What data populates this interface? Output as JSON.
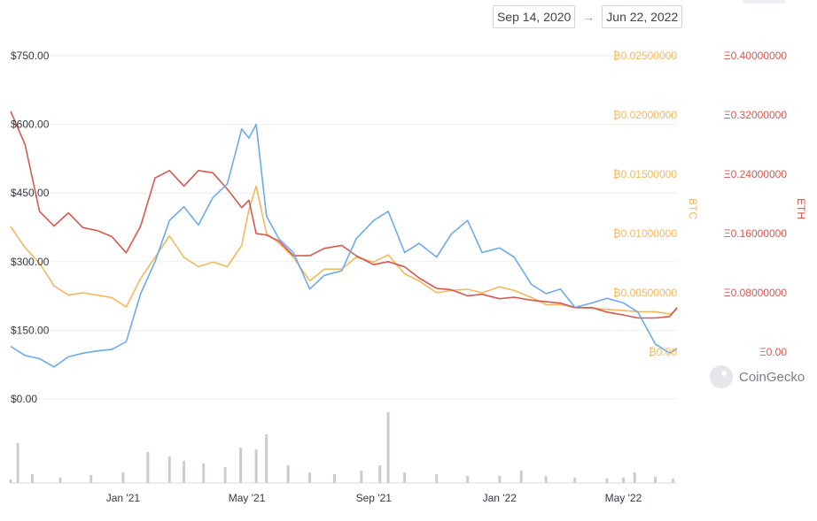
{
  "date_range": {
    "start": "Sep 14, 2020",
    "arrow": "→",
    "end": "Jun 22, 2022"
  },
  "branding": {
    "logo_text": "CoinGecko"
  },
  "colors": {
    "usd": "#6aabed",
    "btc": "#f5b75b",
    "eth": "#d6584f",
    "volume": "#c9ccd1",
    "grid": "#eeeeee"
  },
  "chart_data": {
    "type": "line",
    "x_range": [
      "2020-09-14",
      "2022-06-22"
    ],
    "x_tick_labels": [
      "Jan '21",
      "May '21",
      "Sep '21",
      "Jan '22",
      "May '22"
    ],
    "x_tick_dates": [
      "2021-01-01",
      "2021-05-01",
      "2021-09-01",
      "2022-01-01",
      "2022-05-01"
    ],
    "axes": {
      "usd": {
        "label": "",
        "range": [
          0,
          750
        ],
        "ticks": [
          "$750.00",
          "$600.00",
          "$450.00",
          "$300.00",
          "$150.00",
          "$0.00"
        ]
      },
      "btc": {
        "label": "BTC",
        "range": [
          0,
          0.025
        ],
        "ticks": [
          "₿0.02500000",
          "₿0.02000000",
          "₿0.01500000",
          "₿0.01000000",
          "₿0.00500000",
          "₿0.00"
        ]
      },
      "eth": {
        "label": "ETH",
        "range": [
          0,
          0.4
        ],
        "ticks": [
          "Ξ0.40000000",
          "Ξ0.32000000",
          "Ξ0.24000000",
          "Ξ0.16000000",
          "Ξ0.08000000",
          "Ξ0.00"
        ]
      }
    },
    "grid": true,
    "legend": "none",
    "series": [
      {
        "key": "usd",
        "x": [
          "2020-09-14",
          "2020-09-28",
          "2020-10-12",
          "2020-10-26",
          "2020-11-09",
          "2020-11-23",
          "2020-12-07",
          "2020-12-21",
          "2021-01-04",
          "2021-01-18",
          "2021-02-01",
          "2021-02-15",
          "2021-03-01",
          "2021-03-15",
          "2021-03-29",
          "2021-04-12",
          "2021-04-26",
          "2021-05-03",
          "2021-05-10",
          "2021-05-20",
          "2021-06-01",
          "2021-06-15",
          "2021-07-01",
          "2021-07-15",
          "2021-08-01",
          "2021-08-15",
          "2021-09-01",
          "2021-09-15",
          "2021-10-01",
          "2021-10-15",
          "2021-11-01",
          "2021-11-15",
          "2021-12-01",
          "2021-12-15",
          "2022-01-01",
          "2022-01-15",
          "2022-02-01",
          "2022-02-15",
          "2022-03-01",
          "2022-03-15",
          "2022-04-01",
          "2022-04-15",
          "2022-05-01",
          "2022-05-15",
          "2022-06-01",
          "2022-06-15",
          "2022-06-22"
        ],
        "values": [
          115,
          95,
          88,
          70,
          92,
          100,
          105,
          108,
          125,
          230,
          300,
          390,
          420,
          380,
          440,
          470,
          590,
          570,
          600,
          400,
          350,
          320,
          240,
          270,
          280,
          350,
          390,
          410,
          320,
          340,
          310,
          360,
          390,
          320,
          330,
          310,
          250,
          230,
          240,
          200,
          210,
          220,
          210,
          190,
          120,
          100,
          110
        ]
      },
      {
        "key": "btc",
        "x": [
          "2020-09-14",
          "2020-09-28",
          "2020-10-12",
          "2020-10-26",
          "2020-11-09",
          "2020-11-23",
          "2020-12-07",
          "2020-12-21",
          "2021-01-04",
          "2021-01-18",
          "2021-02-01",
          "2021-02-15",
          "2021-03-01",
          "2021-03-15",
          "2021-03-29",
          "2021-04-12",
          "2021-04-26",
          "2021-05-03",
          "2021-05-10",
          "2021-05-20",
          "2021-06-01",
          "2021-06-15",
          "2021-07-01",
          "2021-07-15",
          "2021-08-01",
          "2021-08-15",
          "2021-09-01",
          "2021-09-15",
          "2021-10-01",
          "2021-10-15",
          "2021-11-01",
          "2021-11-15",
          "2021-12-01",
          "2021-12-15",
          "2022-01-01",
          "2022-01-15",
          "2022-02-01",
          "2022-02-15",
          "2022-03-01",
          "2022-03-15",
          "2022-04-01",
          "2022-04-15",
          "2022-05-01",
          "2022-05-15",
          "2022-06-01",
          "2022-06-15",
          "2022-06-22"
        ],
        "values": [
          0.0106,
          0.0088,
          0.0075,
          0.0056,
          0.0048,
          0.005,
          0.0048,
          0.0046,
          0.0038,
          0.0062,
          0.008,
          0.0098,
          0.008,
          0.0072,
          0.0076,
          0.0072,
          0.009,
          0.012,
          0.014,
          0.01,
          0.0092,
          0.008,
          0.006,
          0.007,
          0.007,
          0.008,
          0.0076,
          0.0082,
          0.0066,
          0.006,
          0.005,
          0.0052,
          0.0053,
          0.005,
          0.0055,
          0.0052,
          0.0046,
          0.004,
          0.004,
          0.0038,
          0.0037,
          0.0036,
          0.0035,
          0.0034,
          0.0034,
          0.0032,
          0.0036
        ]
      },
      {
        "key": "eth",
        "x": [
          "2020-09-14",
          "2020-09-28",
          "2020-10-12",
          "2020-10-26",
          "2020-11-09",
          "2020-11-23",
          "2020-12-07",
          "2020-12-21",
          "2021-01-04",
          "2021-01-18",
          "2021-02-01",
          "2021-02-15",
          "2021-03-01",
          "2021-03-15",
          "2021-03-29",
          "2021-04-12",
          "2021-04-26",
          "2021-05-03",
          "2021-05-10",
          "2021-05-20",
          "2021-06-01",
          "2021-06-15",
          "2021-07-01",
          "2021-07-15",
          "2021-08-01",
          "2021-08-15",
          "2021-09-01",
          "2021-09-15",
          "2021-10-01",
          "2021-10-15",
          "2021-11-01",
          "2021-11-15",
          "2021-12-01",
          "2021-12-15",
          "2022-01-01",
          "2022-01-15",
          "2022-02-01",
          "2022-02-15",
          "2022-03-01",
          "2022-03-15",
          "2022-04-01",
          "2022-04-15",
          "2022-05-01",
          "2022-05-15",
          "2022-06-01",
          "2022-06-15",
          "2022-06-22"
        ],
        "values": [
          0.325,
          0.28,
          0.19,
          0.17,
          0.188,
          0.168,
          0.164,
          0.156,
          0.134,
          0.17,
          0.235,
          0.245,
          0.224,
          0.245,
          0.242,
          0.22,
          0.195,
          0.205,
          0.16,
          0.158,
          0.15,
          0.13,
          0.13,
          0.14,
          0.144,
          0.13,
          0.118,
          0.122,
          0.115,
          0.1,
          0.086,
          0.084,
          0.076,
          0.078,
          0.072,
          0.074,
          0.07,
          0.068,
          0.066,
          0.06,
          0.06,
          0.054,
          0.05,
          0.046,
          0.046,
          0.048,
          0.06
        ]
      },
      {
        "key": "volume",
        "type": "bar",
        "x": [
          "2020-09-14",
          "2020-09-21",
          "2020-10-05",
          "2020-11-01",
          "2020-12-01",
          "2021-01-01",
          "2021-01-25",
          "2021-02-15",
          "2021-03-01",
          "2021-03-20",
          "2021-04-10",
          "2021-04-25",
          "2021-05-10",
          "2021-05-20",
          "2021-06-10",
          "2021-07-01",
          "2021-07-25",
          "2021-08-20",
          "2021-09-07",
          "2021-09-15",
          "2021-10-01",
          "2021-11-01",
          "2021-12-01",
          "2022-01-01",
          "2022-01-22",
          "2022-02-15",
          "2022-03-15",
          "2022-04-15",
          "2022-05-01",
          "2022-05-12",
          "2022-06-01",
          "2022-06-18"
        ],
        "values": [
          4,
          45,
          10,
          6,
          9,
          12,
          35,
          30,
          25,
          22,
          18,
          40,
          38,
          55,
          20,
          12,
          10,
          14,
          20,
          80,
          12,
          10,
          8,
          8,
          14,
          8,
          6,
          5,
          6,
          12,
          7,
          5
        ]
      }
    ]
  }
}
